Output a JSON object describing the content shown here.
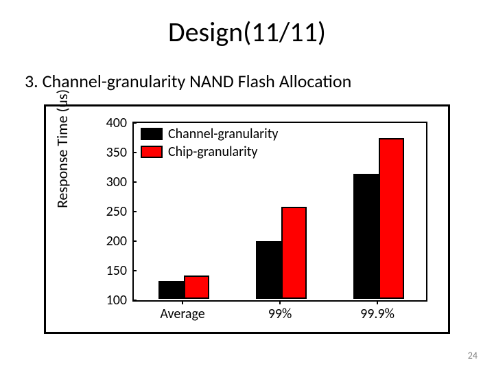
{
  "slide": {
    "title": "Design(11/11)",
    "subtitle": "3.   Channel-granularity NAND Flash Allocation",
    "page_number": "24"
  },
  "chart": {
    "type": "bar",
    "ylabel": "Response Time (us)",
    "ylim": [
      100,
      400
    ],
    "ytick_step": 50,
    "yticks": [
      100,
      150,
      200,
      250,
      300,
      350,
      400
    ],
    "categories": [
      "Average",
      "99%",
      "99.9%"
    ],
    "series": [
      {
        "name": "Channel-granularity",
        "color": "#000000",
        "values": [
          130,
          198,
          312
        ]
      },
      {
        "name": "Chip-granularity",
        "color": "#ff0000",
        "values": [
          140,
          256,
          372
        ]
      }
    ],
    "bar_group_width": 0.52,
    "plot_border_color": "#000000",
    "background_color": "#ffffff",
    "axis_fontsize": 20,
    "label_fontsize": 22,
    "legend_fontsize": 20
  }
}
